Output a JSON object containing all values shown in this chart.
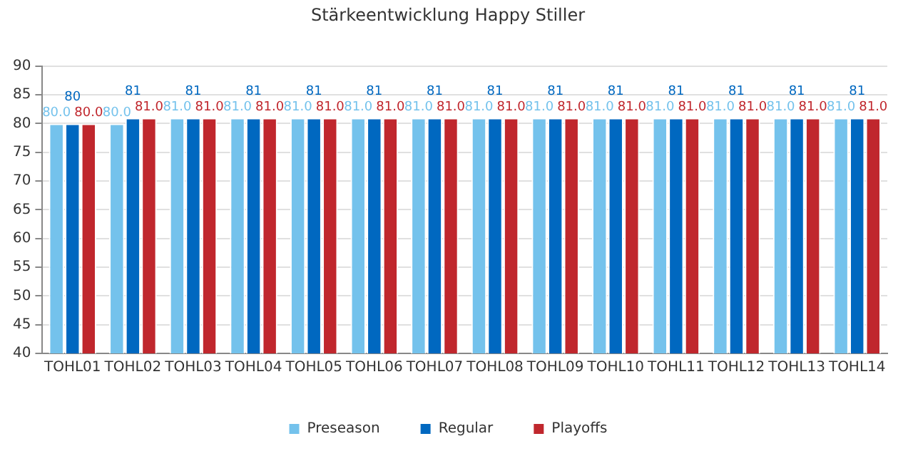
{
  "chart_data": {
    "type": "bar",
    "title": "Stärkeentwicklung Happy Stiller",
    "categories": [
      "TOHL01",
      "TOHL02",
      "TOHL03",
      "TOHL04",
      "TOHL05",
      "TOHL06",
      "TOHL07",
      "TOHL08",
      "TOHL09",
      "TOHL10",
      "TOHL11",
      "TOHL12",
      "TOHL13",
      "TOHL14"
    ],
    "series": [
      {
        "name": "Preseason",
        "color": "#74c2ec",
        "values": [
          80,
          80,
          81,
          81,
          81,
          81,
          81,
          81,
          81,
          81,
          81,
          81,
          81,
          81
        ],
        "value_labels": [
          "80.0",
          "80.0",
          "81.0",
          "81.0",
          "81.0",
          "81.0",
          "81.0",
          "81.0",
          "81.0",
          "81.0",
          "81.0",
          "81.0",
          "81.0",
          "81.0"
        ]
      },
      {
        "name": "Regular",
        "color": "#0068c0",
        "values": [
          80,
          81,
          81,
          81,
          81,
          81,
          81,
          81,
          81,
          81,
          81,
          81,
          81,
          81
        ],
        "value_labels": [
          "80",
          "81",
          "81",
          "81",
          "81",
          "81",
          "81",
          "81",
          "81",
          "81",
          "81",
          "81",
          "81",
          "81"
        ]
      },
      {
        "name": "Playoffs",
        "color": "#c0272d",
        "values": [
          80,
          81,
          81,
          81,
          81,
          81,
          81,
          81,
          81,
          81,
          81,
          81,
          81,
          81
        ],
        "value_labels": [
          "80.0",
          "81.0",
          "81.0",
          "81.0",
          "81.0",
          "81.0",
          "81.0",
          "81.0",
          "81.0",
          "81.0",
          "81.0",
          "81.0",
          "81.0",
          "81.0"
        ]
      }
    ],
    "ylim": [
      40,
      90
    ],
    "yticks": [
      40,
      45,
      50,
      55,
      60,
      65,
      70,
      75,
      80,
      85,
      90
    ],
    "grid": "y",
    "legend": "bottom"
  }
}
